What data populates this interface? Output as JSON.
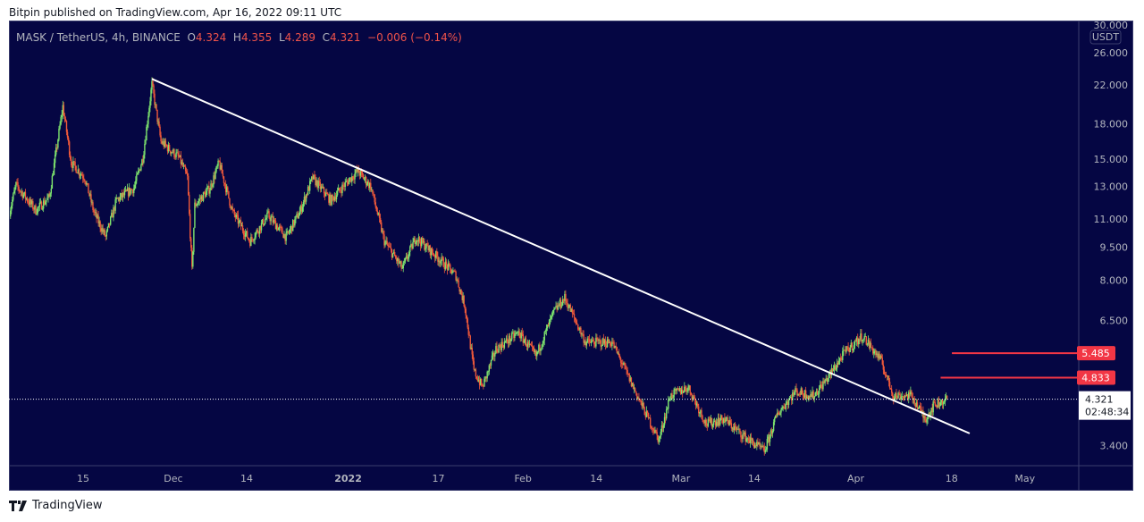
{
  "header": {
    "published": "Bitpin published on TradingView.com, Apr 16, 2022 09:11 UTC"
  },
  "legend": {
    "symbol": "MASK / TetherUS, 4h, BINANCE",
    "o_label": "O",
    "o": "4.324",
    "h_label": "H",
    "h": "4.355",
    "l_label": "L",
    "l": "4.289",
    "c_label": "C",
    "c": "4.321",
    "change": "−0.006 (−0.14%)"
  },
  "footer": {
    "brand": "TradingView"
  },
  "colors": {
    "bg": "#050643",
    "up": "#7ee46e",
    "down": "#f0593a",
    "line": "#ffffff",
    "level": "#f23645"
  },
  "chart_data": {
    "type": "candlestick",
    "title": "MASK / TetherUS, 4h, BINANCE",
    "currency": "USDT",
    "y_scale": "log",
    "ylim": [
      3.05,
      31
    ],
    "y_ticks": [
      "30.000",
      "26.000",
      "22.000",
      "18.000",
      "15.000",
      "13.000",
      "11.000",
      "9.500",
      "8.000",
      "6.500",
      "3.400"
    ],
    "x_unit": "days since Nov 15 2021",
    "x_ticks": [
      {
        "label": "15",
        "d": 0
      },
      {
        "label": "Dec",
        "d": 16
      },
      {
        "label": "14",
        "d": 29
      },
      {
        "label": "2022",
        "d": 47
      },
      {
        "label": "17",
        "d": 63
      },
      {
        "label": "Feb",
        "d": 78
      },
      {
        "label": "14",
        "d": 91
      },
      {
        "label": "Mar",
        "d": 106
      },
      {
        "label": "14",
        "d": 119
      },
      {
        "label": "Apr",
        "d": 137
      },
      {
        "label": "18",
        "d": 154
      },
      {
        "label": "May",
        "d": 167
      }
    ],
    "price_path": [
      [
        -13.2,
        11.2
      ],
      [
        -11.9,
        13.1
      ],
      [
        -8.4,
        11.5
      ],
      [
        -6,
        12.3
      ],
      [
        -3.6,
        19.7
      ],
      [
        -2.1,
        14.7
      ],
      [
        0.3,
        13.6
      ],
      [
        1.9,
        11.4
      ],
      [
        4,
        10
      ],
      [
        5.9,
        12.1
      ],
      [
        9,
        12.9
      ],
      [
        10.6,
        15.1
      ],
      [
        12.2,
        22.1
      ],
      [
        13.8,
        16.4
      ],
      [
        17,
        15.1
      ],
      [
        18.5,
        13.6
      ],
      [
        19.3,
        8.4
      ],
      [
        19.8,
        11.8
      ],
      [
        22.5,
        12.9
      ],
      [
        24.1,
        14.7
      ],
      [
        26.5,
        11.4
      ],
      [
        29.6,
        9.8
      ],
      [
        32.8,
        11.2
      ],
      [
        36,
        10
      ],
      [
        38.4,
        11.4
      ],
      [
        40.7,
        13.6
      ],
      [
        43.9,
        12.1
      ],
      [
        46.3,
        13.1
      ],
      [
        48.7,
        14.1
      ],
      [
        51,
        13
      ],
      [
        53.4,
        9.8
      ],
      [
        56.6,
        8.5
      ],
      [
        59,
        10
      ],
      [
        62.9,
        9
      ],
      [
        66.1,
        8.2
      ],
      [
        67.7,
        7
      ],
      [
        69.3,
        5
      ],
      [
        70.8,
        4.6
      ],
      [
        73.2,
        5.6
      ],
      [
        77.2,
        6.1
      ],
      [
        80.3,
        5.4
      ],
      [
        83.5,
        6.8
      ],
      [
        85.4,
        7.3
      ],
      [
        89.1,
        5.8
      ],
      [
        93.8,
        5.8
      ],
      [
        96.2,
        5
      ],
      [
        99.4,
        4.1
      ],
      [
        102.1,
        3.5
      ],
      [
        104.1,
        4.4
      ],
      [
        107.3,
        4.6
      ],
      [
        110.5,
        3.8
      ],
      [
        113.6,
        3.9
      ],
      [
        116.8,
        3.6
      ],
      [
        120.8,
        3.3
      ],
      [
        123.1,
        4
      ],
      [
        126.3,
        4.5
      ],
      [
        129.5,
        4.4
      ],
      [
        131.9,
        4.8
      ],
      [
        135,
        5.5
      ],
      [
        138.2,
        6
      ],
      [
        141.4,
        5.3
      ],
      [
        143.7,
        4.4
      ],
      [
        146.9,
        4.4
      ],
      [
        149.3,
        3.9
      ],
      [
        150.9,
        4.2
      ],
      [
        153.2,
        4.32
      ]
    ],
    "trendline": [
      [
        12.2,
        22.7
      ],
      [
        157.2,
        3.62
      ]
    ],
    "levels": [
      {
        "price": 5.485,
        "label": "5.485",
        "from_d": 155
      },
      {
        "price": 4.833,
        "label": "4.833",
        "from_d": 153
      }
    ],
    "last_price": {
      "label": "4.321",
      "value": 4.321,
      "countdown": "02:48:34"
    }
  }
}
